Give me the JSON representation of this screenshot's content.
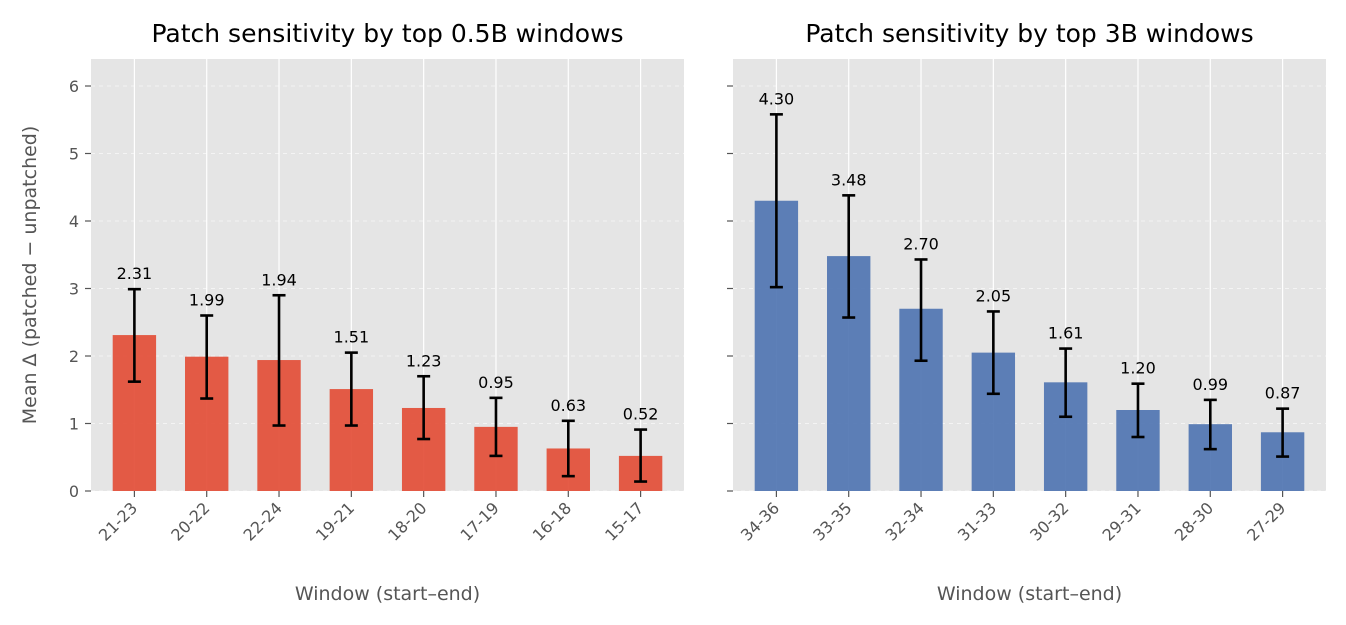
{
  "chart_data": [
    {
      "type": "bar",
      "title": "Patch sensitivity by top 0.5B windows",
      "xlabel": "Window (start–end)",
      "ylabel": "Mean Δ (patched − unpatched)",
      "ylim": [
        0,
        6.4
      ],
      "yticks": [
        "0",
        "1",
        "2",
        "3",
        "4",
        "5",
        "6"
      ],
      "show_ytick_labels": true,
      "grid": true,
      "color": "#E24A33",
      "categories": [
        "21-23",
        "20-22",
        "22-24",
        "19-21",
        "18-20",
        "17-19",
        "16-18",
        "15-17"
      ],
      "values": [
        2.31,
        1.99,
        1.94,
        1.51,
        1.23,
        0.95,
        0.63,
        0.52
      ],
      "value_labels": [
        "2.31",
        "1.99",
        "1.94",
        "1.51",
        "1.23",
        "0.95",
        "0.63",
        "0.52"
      ],
      "error_low": [
        1.62,
        1.37,
        0.97,
        0.97,
        0.77,
        0.52,
        0.22,
        0.14
      ],
      "error_high": [
        2.99,
        2.6,
        2.9,
        2.05,
        1.7,
        1.38,
        1.04,
        0.91
      ]
    },
    {
      "type": "bar",
      "title": "Patch sensitivity by top 3B windows",
      "xlabel": "Window (start–end)",
      "ylabel": "",
      "ylim": [
        0,
        6.4
      ],
      "yticks": [
        "0",
        "1",
        "2",
        "3",
        "4",
        "5",
        "6"
      ],
      "show_ytick_labels": false,
      "grid": true,
      "color": "#4C72B0",
      "categories": [
        "34-36",
        "33-35",
        "32-34",
        "31-33",
        "30-32",
        "29-31",
        "28-30",
        "27-29"
      ],
      "values": [
        4.3,
        3.48,
        2.7,
        2.05,
        1.61,
        1.2,
        0.99,
        0.87
      ],
      "value_labels": [
        "4.30",
        "3.48",
        "2.70",
        "2.05",
        "1.61",
        "1.20",
        "0.99",
        "0.87"
      ],
      "error_low": [
        3.02,
        2.57,
        1.93,
        1.44,
        1.1,
        0.8,
        0.62,
        0.51
      ],
      "error_high": [
        5.58,
        4.38,
        3.43,
        2.66,
        2.11,
        1.59,
        1.35,
        1.22
      ]
    }
  ]
}
